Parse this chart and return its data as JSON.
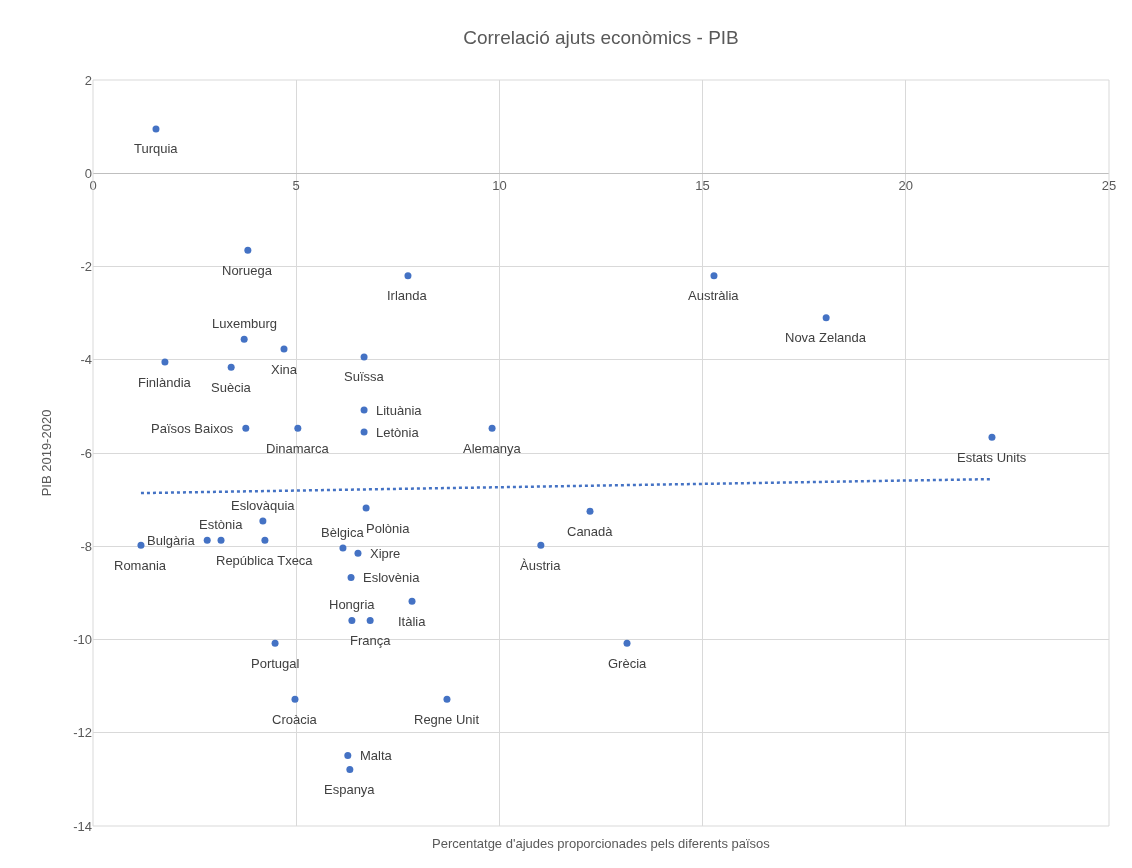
{
  "chart_data": {
    "type": "scatter",
    "title": "Correlació ajuts econòmics - PIB",
    "xlabel": "Percentatge d'ajudes proporcionades pels diferents països",
    "ylabel": "PIB 2019-2020",
    "series": [
      {
        "color": "#4472c4",
        "x": [
          1.55,
          3.81,
          7.75,
          15.28,
          18.04,
          3.72,
          4.7,
          6.67,
          1.77,
          3.4,
          6.67,
          3.76,
          5.04,
          6.67,
          9.82,
          22.12,
          6.72,
          12.23,
          4.18,
          3.15,
          2.81,
          1.18,
          4.23,
          6.15,
          6.52,
          11.02,
          6.35,
          7.85,
          6.37,
          6.82,
          4.48,
          13.14,
          4.97,
          8.71,
          6.27,
          6.32
        ],
        "values": [
          0.95,
          -1.65,
          -2.2,
          -2.2,
          -3.1,
          -3.56,
          -3.77,
          -3.94,
          -4.05,
          -4.16,
          -5.08,
          -5.47,
          -5.47,
          -5.55,
          -5.47,
          -5.66,
          -7.18,
          -7.25,
          -7.46,
          -7.87,
          -7.87,
          -7.98,
          -7.87,
          -8.04,
          -8.15,
          -7.98,
          -8.67,
          -9.18,
          -9.59,
          -9.59,
          -10.08,
          -10.08,
          -11.28,
          -11.28,
          -12.49,
          -12.79
        ]
      },
      {
        "type": "line",
        "color": "#4472c4",
        "line_style": "dotted",
        "marker": "none",
        "x": [
          1.18,
          22.12
        ],
        "values": [
          -6.86,
          -6.56
        ]
      }
    ],
    "annotations": [
      {
        "text": "Turquia",
        "x": 1.55,
        "y": 0.95
      },
      {
        "text": "Noruega",
        "x": 3.81,
        "y": -1.65
      },
      {
        "text": "Irlanda",
        "x": 7.75,
        "y": -2.2
      },
      {
        "text": "Austràlia",
        "x": 15.28,
        "y": -2.2
      },
      {
        "text": "Nova Zelanda",
        "x": 18.04,
        "y": -3.1
      },
      {
        "text": "Luxemburg",
        "x": 3.72,
        "y": -3.56
      },
      {
        "text": "Xina",
        "x": 4.7,
        "y": -3.77
      },
      {
        "text": "Suïssa",
        "x": 6.67,
        "y": -3.94
      },
      {
        "text": "Finlàndia",
        "x": 1.77,
        "y": -4.05
      },
      {
        "text": "Suècia",
        "x": 3.4,
        "y": -4.16
      },
      {
        "text": "Lituània",
        "x": 6.67,
        "y": -5.08
      },
      {
        "text": "Països Baixos",
        "x": 3.76,
        "y": -5.47
      },
      {
        "text": "Dinamarca",
        "x": 5.04,
        "y": -5.47
      },
      {
        "text": "Letònia",
        "x": 6.67,
        "y": -5.55
      },
      {
        "text": "Alemanya",
        "x": 9.82,
        "y": -5.47
      },
      {
        "text": "Estats Units",
        "x": 22.12,
        "y": -5.66
      },
      {
        "text": "Polònia",
        "x": 6.72,
        "y": -7.18
      },
      {
        "text": "Canadà",
        "x": 12.23,
        "y": -7.25
      },
      {
        "text": "Eslovàquia",
        "x": 4.18,
        "y": -7.46
      },
      {
        "text": "Estònia",
        "x": 3.15,
        "y": -7.87
      },
      {
        "text": "Bulgària",
        "x": 2.81,
        "y": -7.87
      },
      {
        "text": "Romania",
        "x": 1.18,
        "y": -7.98
      },
      {
        "text": "República Txeca",
        "x": 4.23,
        "y": -7.87
      },
      {
        "text": "Bèlgica",
        "x": 6.15,
        "y": -8.04
      },
      {
        "text": "Xipre",
        "x": 6.52,
        "y": -8.15
      },
      {
        "text": "Àustria",
        "x": 11.02,
        "y": -7.98
      },
      {
        "text": "Eslovènia",
        "x": 6.35,
        "y": -8.67
      },
      {
        "text": "Itàlia",
        "x": 7.85,
        "y": -9.18
      },
      {
        "text": "Hongria",
        "x": 6.37,
        "y": -9.59
      },
      {
        "text": "França",
        "x": 6.82,
        "y": -9.59
      },
      {
        "text": "Portugal",
        "x": 4.48,
        "y": -10.08
      },
      {
        "text": "Grècia",
        "x": 13.14,
        "y": -10.08
      },
      {
        "text": "Croàcia",
        "x": 4.97,
        "y": -11.28
      },
      {
        "text": "Regne Unit",
        "x": 8.71,
        "y": -11.28
      },
      {
        "text": "Malta",
        "x": 6.27,
        "y": -12.49
      },
      {
        "text": "Espanya",
        "x": 6.32,
        "y": -12.79
      }
    ],
    "xlim": [
      0,
      25
    ],
    "xticks": [
      0,
      5,
      10,
      15,
      20,
      25
    ],
    "ylim": [
      -14,
      2
    ],
    "yticks": [
      -14,
      -12,
      -10,
      -8,
      -6,
      -4,
      -2,
      0,
      2
    ],
    "grid": true,
    "marker": "circle"
  }
}
